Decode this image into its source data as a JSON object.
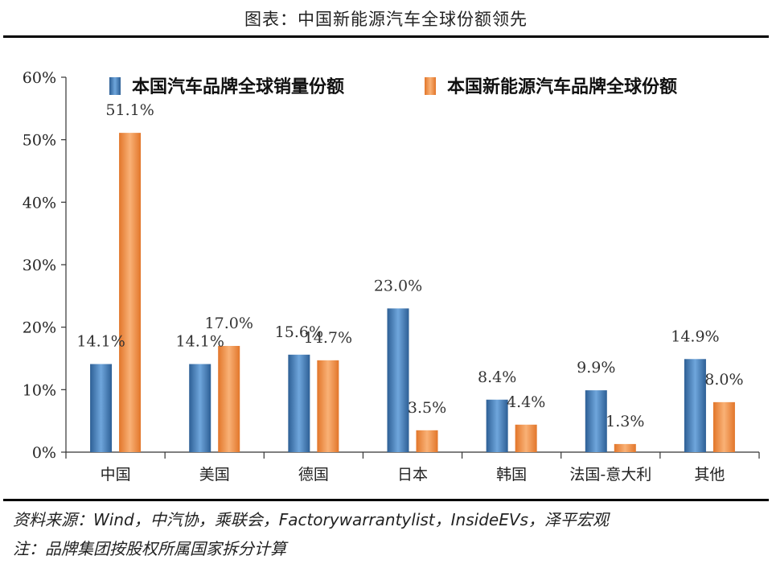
{
  "figure": {
    "title": "图表：中国新能源汽车全球份额领先",
    "source": "资料来源：Wind，中汽协，乘联会，Factorywarrantylist，InsideEVs，泽平宏观",
    "note": "注：品牌集团按股权所属国家拆分计算"
  },
  "chart_data": {
    "type": "bar",
    "categories": [
      "中国",
      "美国",
      "德国",
      "日本",
      "韩国",
      "法国-意大利",
      "其他"
    ],
    "series": [
      {
        "name": "本国汽车品牌全球销量份额",
        "values": [
          14.1,
          14.1,
          15.6,
          23.0,
          8.4,
          9.9,
          14.9
        ],
        "color": "#3f7fc0"
      },
      {
        "name": "本国新能源汽车品牌全球份额",
        "values": [
          51.1,
          17.0,
          14.7,
          3.5,
          4.4,
          1.3,
          8.0
        ],
        "color": "#f0954a"
      }
    ],
    "y_ticks": [
      "0%",
      "10%",
      "20%",
      "30%",
      "40%",
      "50%",
      "60%"
    ],
    "ylim": [
      0,
      60
    ],
    "unit": "%",
    "legend": "top",
    "grid": false
  }
}
